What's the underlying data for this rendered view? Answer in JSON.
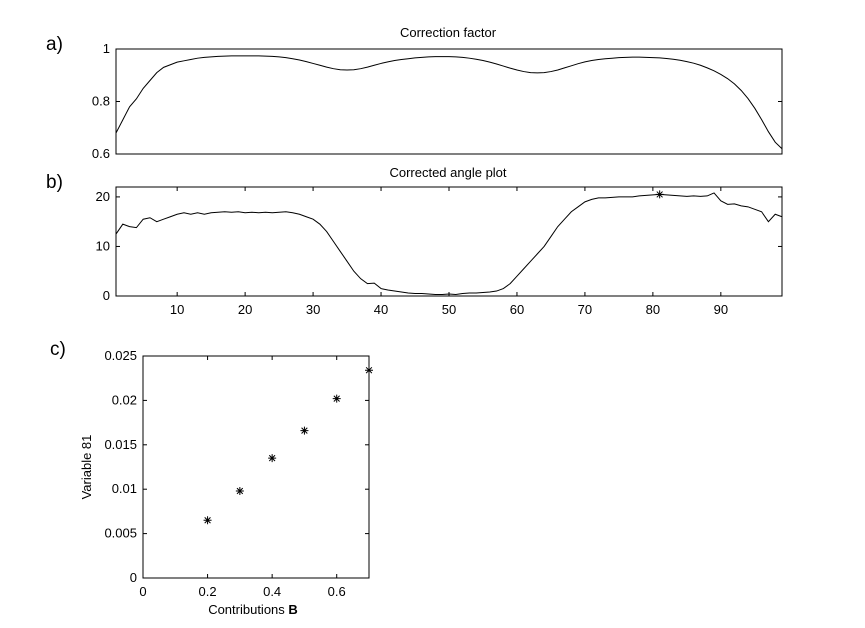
{
  "figure": {
    "panel_labels": [
      "a)",
      "b)",
      "c)"
    ]
  },
  "chart_data": [
    {
      "type": "line",
      "title": "Correction factor",
      "xlabel": "",
      "ylabel": "",
      "xlim": [
        1,
        99
      ],
      "ylim": [
        0.6,
        1
      ],
      "x_ticks": [],
      "y_ticks": [
        0.6,
        0.8,
        1
      ],
      "y_tick_labels": [
        "0.6",
        "0.8",
        "1"
      ],
      "grid": false,
      "series": [
        {
          "x": [
            1,
            2,
            3,
            4,
            5,
            6,
            7,
            8,
            9,
            10,
            11,
            12,
            13,
            14,
            15,
            16,
            17,
            18,
            19,
            20,
            21,
            22,
            23,
            24,
            25,
            26,
            27,
            28,
            29,
            30,
            31,
            32,
            33,
            34,
            35,
            36,
            37,
            38,
            39,
            40,
            41,
            42,
            43,
            44,
            45,
            46,
            47,
            48,
            49,
            50,
            51,
            52,
            53,
            54,
            55,
            56,
            57,
            58,
            59,
            60,
            61,
            62,
            63,
            64,
            65,
            66,
            67,
            68,
            69,
            70,
            71,
            72,
            73,
            74,
            75,
            76,
            77,
            78,
            79,
            80,
            81,
            82,
            83,
            84,
            85,
            86,
            87,
            88,
            89,
            90,
            91,
            92,
            93,
            94,
            95,
            96,
            97,
            98,
            99
          ],
          "values": [
            0.68,
            0.73,
            0.78,
            0.81,
            0.85,
            0.88,
            0.91,
            0.93,
            0.94,
            0.95,
            0.955,
            0.96,
            0.965,
            0.968,
            0.97,
            0.972,
            0.973,
            0.974,
            0.974,
            0.974,
            0.974,
            0.974,
            0.973,
            0.972,
            0.97,
            0.967,
            0.963,
            0.958,
            0.952,
            0.945,
            0.938,
            0.931,
            0.925,
            0.921,
            0.92,
            0.921,
            0.925,
            0.931,
            0.938,
            0.945,
            0.951,
            0.956,
            0.96,
            0.963,
            0.966,
            0.968,
            0.97,
            0.971,
            0.971,
            0.971,
            0.97,
            0.968,
            0.965,
            0.961,
            0.956,
            0.95,
            0.943,
            0.935,
            0.927,
            0.92,
            0.914,
            0.91,
            0.909,
            0.91,
            0.914,
            0.92,
            0.928,
            0.936,
            0.944,
            0.951,
            0.956,
            0.96,
            0.963,
            0.965,
            0.967,
            0.968,
            0.969,
            0.969,
            0.968,
            0.967,
            0.966,
            0.964,
            0.961,
            0.957,
            0.952,
            0.946,
            0.938,
            0.928,
            0.917,
            0.903,
            0.887,
            0.867,
            0.842,
            0.811,
            0.774,
            0.731,
            0.685,
            0.645,
            0.62
          ]
        }
      ]
    },
    {
      "type": "line",
      "title": "Corrected angle plot",
      "xlabel": "",
      "ylabel": "",
      "xlim": [
        1,
        99
      ],
      "ylim": [
        0,
        22
      ],
      "x_ticks": [
        10,
        20,
        30,
        40,
        50,
        60,
        70,
        80,
        90
      ],
      "x_tick_labels": [
        "10",
        "20",
        "30",
        "40",
        "50",
        "60",
        "70",
        "80",
        "90"
      ],
      "y_ticks": [
        0,
        10,
        20
      ],
      "y_tick_labels": [
        "0",
        "10",
        "20"
      ],
      "grid": false,
      "series": [
        {
          "x": [
            1,
            2,
            3,
            4,
            5,
            6,
            7,
            8,
            9,
            10,
            11,
            12,
            13,
            14,
            15,
            16,
            17,
            18,
            19,
            20,
            21,
            22,
            23,
            24,
            25,
            26,
            27,
            28,
            29,
            30,
            31,
            32,
            33,
            34,
            35,
            36,
            37,
            38,
            39,
            40,
            41,
            42,
            43,
            44,
            45,
            46,
            47,
            48,
            49,
            50,
            51,
            52,
            53,
            54,
            55,
            56,
            57,
            58,
            59,
            60,
            61,
            62,
            63,
            64,
            65,
            66,
            67,
            68,
            69,
            70,
            71,
            72,
            73,
            74,
            75,
            76,
            77,
            78,
            79,
            80,
            81,
            82,
            83,
            84,
            85,
            86,
            87,
            88,
            89,
            90,
            91,
            92,
            93,
            94,
            95,
            96,
            97,
            98,
            99
          ],
          "values": [
            12.5,
            14.5,
            14,
            13.8,
            15.5,
            15.8,
            15,
            15.5,
            16,
            16.5,
            16.8,
            16.5,
            16.8,
            16.5,
            16.8,
            16.9,
            17,
            16.9,
            17,
            16.8,
            16.9,
            16.8,
            16.9,
            16.8,
            16.9,
            17,
            16.8,
            16.5,
            16,
            15.5,
            14.5,
            13,
            11,
            9,
            7,
            5,
            3.5,
            2.5,
            2.6,
            1.5,
            1.2,
            1,
            0.8,
            0.6,
            0.5,
            0.5,
            0.4,
            0.3,
            0.3,
            0.4,
            0.3,
            0.5,
            0.6,
            0.6,
            0.7,
            0.8,
            1,
            1.5,
            2.5,
            4,
            5.5,
            7,
            8.5,
            10,
            12,
            14,
            15.5,
            17,
            18,
            19,
            19.5,
            19.8,
            19.8,
            19.9,
            20,
            20,
            20,
            20.2,
            20.3,
            20.4,
            20.5,
            20.4,
            20.3,
            20.2,
            20.1,
            20.2,
            20.1,
            20.2,
            20.8,
            19.2,
            18.5,
            18.6,
            18.2,
            18,
            17.5,
            17,
            15,
            16.5,
            16
          ]
        }
      ],
      "marker_point": {
        "x": 81,
        "y": 20.5
      }
    },
    {
      "type": "scatter",
      "title": "",
      "xlabel_text": "Contributions ",
      "xlabel_bold": "B",
      "ylabel": "Variable 81",
      "xlim": [
        0,
        0.7
      ],
      "ylim": [
        0,
        0.025
      ],
      "x_ticks": [
        0,
        0.2,
        0.4,
        0.6
      ],
      "x_tick_labels": [
        "0",
        "0.2",
        "0.4",
        "0.6"
      ],
      "y_ticks": [
        0,
        0.005,
        0.01,
        0.015,
        0.02,
        0.025
      ],
      "y_tick_labels": [
        "0",
        "0.005",
        "0.01",
        "0.015",
        "0.02",
        "0.025"
      ],
      "grid": false,
      "series": [
        {
          "x": [
            0.2,
            0.3,
            0.4,
            0.5,
            0.6,
            0.7
          ],
          "values": [
            0.0065,
            0.0098,
            0.0135,
            0.0166,
            0.0202,
            0.0234
          ]
        }
      ]
    }
  ]
}
